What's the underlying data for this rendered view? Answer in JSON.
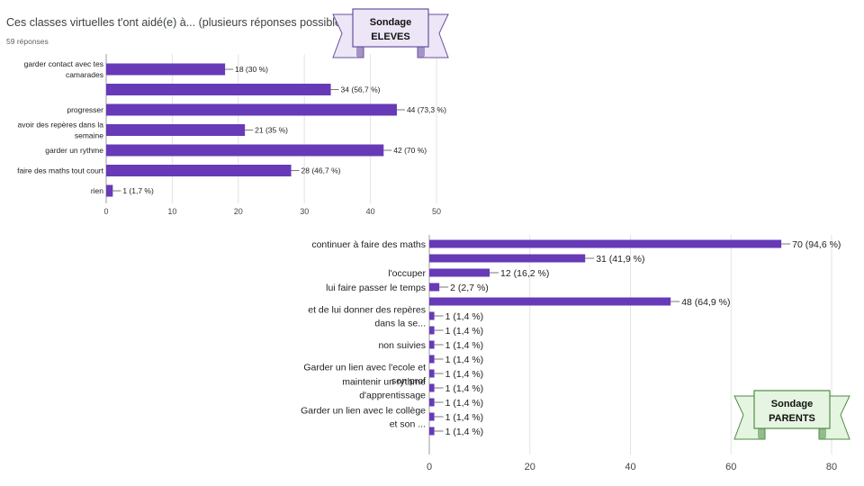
{
  "chart_data": [
    {
      "type": "bar",
      "orientation": "horizontal",
      "title": "Ces classes virtuelles t'ont aidé(e) à... (plusieurs réponses possibles)",
      "subtitle": "59 réponses",
      "categories": [
        [
          "garder contact avec tes",
          "camarades"
        ],
        [],
        [
          "progresser"
        ],
        [
          "avoir des repères dans la",
          "semaine"
        ],
        [
          "garder un rythme"
        ],
        [
          "faire des maths tout court"
        ],
        [
          "rien"
        ]
      ],
      "values": [
        18,
        34,
        44,
        21,
        42,
        28,
        1
      ],
      "value_labels": [
        "18 (30 %)",
        "34 (56,7 %)",
        "44 (73,3 %)",
        "21 (35 %)",
        "42 (70 %)",
        "28 (46,7 %)",
        "1 (1,7 %)"
      ],
      "xlim": [
        0,
        50
      ],
      "xticks": [
        0,
        10,
        20,
        30,
        40,
        50
      ],
      "grid": true,
      "color": "#673ab7"
    },
    {
      "type": "bar",
      "orientation": "horizontal",
      "title": "",
      "categories": [
        [
          "continuer à faire des maths"
        ],
        [],
        [
          "l'occuper"
        ],
        [
          "lui faire passer le temps"
        ],
        [],
        [
          "et de lui donner des repères",
          "dans la se..."
        ],
        [],
        [
          "non suivies"
        ],
        [],
        [
          "Garder un lien avec l'ecole et",
          "son prof"
        ],
        [
          "maintenir un rythme",
          "d'apprentissage"
        ],
        [],
        [
          "Garder un lien avec le collège",
          "et son ..."
        ],
        []
      ],
      "values": [
        70,
        31,
        12,
        2,
        48,
        1,
        1,
        1,
        1,
        1,
        1,
        1,
        1,
        1
      ],
      "value_labels": [
        "70 (94,6 %)",
        "31 (41,9 %)",
        "12 (16,2 %)",
        "2 (2,7 %)",
        "48 (64,9 %)",
        "1 (1,4 %)",
        "1 (1,4 %)",
        "1 (1,4 %)",
        "1 (1,4 %)",
        "1 (1,4 %)",
        "1 (1,4 %)",
        "1 (1,4 %)",
        "1 (1,4 %)",
        "1 (1,4 %)"
      ],
      "xlim": [
        0,
        80
      ],
      "xticks": [
        0,
        20,
        40,
        60,
        80
      ],
      "grid": true,
      "color": "#673ab7"
    }
  ],
  "banners": [
    {
      "line1": "Sondage",
      "line2": "ELEVES",
      "fill": "#ece6f7",
      "stroke": "#6a4f9e"
    },
    {
      "line1": "Sondage",
      "line2": "PARENTS",
      "fill": "#e6f4e2",
      "stroke": "#4f8c46"
    }
  ]
}
